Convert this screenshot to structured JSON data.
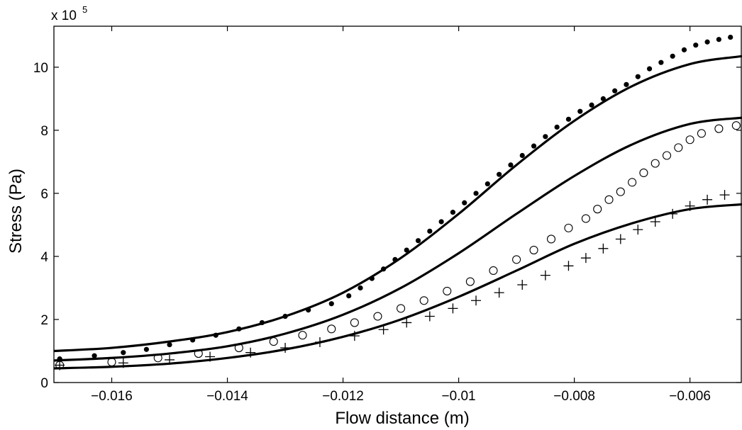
{
  "chart_data": {
    "type": "scatter",
    "title": "",
    "xlabel": "Flow distance (m)",
    "ylabel": "Stress (Pa)",
    "y_scale_label": {
      "base": "x 10",
      "exponent": "5"
    },
    "xlim": [
      -0.017,
      -0.0051
    ],
    "ylim": [
      0,
      11.3
    ],
    "y_multiplier": 100000,
    "grid": false,
    "legend": "none",
    "x_ticks": [
      {
        "value": -0.016,
        "label": "−0.016"
      },
      {
        "value": -0.014,
        "label": "−0.014"
      },
      {
        "value": -0.012,
        "label": "−0.012"
      },
      {
        "value": -0.01,
        "label": "−0.01"
      },
      {
        "value": -0.008,
        "label": "−0.008"
      },
      {
        "value": -0.006,
        "label": "−0.006"
      }
    ],
    "y_ticks": [
      {
        "value": 0,
        "label": "0"
      },
      {
        "value": 2,
        "label": "2"
      },
      {
        "value": 4,
        "label": "4"
      },
      {
        "value": 6,
        "label": "6"
      },
      {
        "value": 8,
        "label": "8"
      },
      {
        "value": 10,
        "label": "10"
      }
    ],
    "colors": {
      "line": "#000000",
      "marker": "#000000",
      "background": "#ffffff"
    },
    "series": [
      {
        "kind": "line",
        "x": [
          -0.017,
          -0.016,
          -0.015,
          -0.014,
          -0.013,
          -0.012,
          -0.011,
          -0.01,
          -0.009,
          -0.008,
          -0.007,
          -0.006,
          -0.0051
        ],
        "y": [
          1.0,
          1.1,
          1.3,
          1.6,
          2.1,
          2.85,
          3.95,
          5.35,
          6.9,
          8.3,
          9.4,
          10.1,
          10.35
        ]
      },
      {
        "kind": "line",
        "x": [
          -0.017,
          -0.016,
          -0.015,
          -0.014,
          -0.013,
          -0.012,
          -0.011,
          -0.01,
          -0.009,
          -0.008,
          -0.007,
          -0.006,
          -0.0051
        ],
        "y": [
          0.7,
          0.78,
          0.92,
          1.15,
          1.55,
          2.15,
          3.0,
          4.1,
          5.35,
          6.55,
          7.55,
          8.2,
          8.4
        ]
      },
      {
        "kind": "line",
        "x": [
          -0.017,
          -0.016,
          -0.015,
          -0.014,
          -0.013,
          -0.012,
          -0.011,
          -0.01,
          -0.009,
          -0.008,
          -0.007,
          -0.006,
          -0.0051
        ],
        "y": [
          0.45,
          0.5,
          0.6,
          0.78,
          1.05,
          1.45,
          2.0,
          2.72,
          3.55,
          4.4,
          5.05,
          5.5,
          5.65
        ]
      },
      {
        "kind": "markers",
        "marker": "filled-circle",
        "x": [
          -0.0169,
          -0.0163,
          -0.0158,
          -0.0154,
          -0.015,
          -0.0146,
          -0.0142,
          -0.0138,
          -0.0134,
          -0.013,
          -0.0126,
          -0.0122,
          -0.0119,
          -0.0117,
          -0.0115,
          -0.0113,
          -0.0111,
          -0.0109,
          -0.0107,
          -0.0105,
          -0.0103,
          -0.0101,
          -0.0099,
          -0.0097,
          -0.0095,
          -0.0093,
          -0.0091,
          -0.0089,
          -0.0087,
          -0.0085,
          -0.0083,
          -0.0081,
          -0.0079,
          -0.0077,
          -0.0075,
          -0.0073,
          -0.0071,
          -0.0069,
          -0.0067,
          -0.0065,
          -0.0063,
          -0.0061,
          -0.0059,
          -0.0057,
          -0.0055,
          -0.0053,
          -0.0051
        ],
        "y": [
          0.75,
          0.85,
          0.95,
          1.05,
          1.2,
          1.35,
          1.5,
          1.7,
          1.9,
          2.1,
          2.3,
          2.5,
          2.75,
          3.0,
          3.3,
          3.6,
          3.9,
          4.2,
          4.5,
          4.8,
          5.1,
          5.4,
          5.7,
          6.0,
          6.3,
          6.6,
          6.9,
          7.2,
          7.5,
          7.8,
          8.1,
          8.35,
          8.6,
          8.8,
          9.0,
          9.25,
          9.45,
          9.7,
          9.95,
          10.15,
          10.35,
          10.55,
          10.7,
          10.8,
          10.88,
          10.95,
          11.0
        ]
      },
      {
        "kind": "markers",
        "marker": "open-circle",
        "x": [
          -0.0169,
          -0.016,
          -0.0152,
          -0.0145,
          -0.0138,
          -0.0132,
          -0.0127,
          -0.0122,
          -0.0118,
          -0.0114,
          -0.011,
          -0.0106,
          -0.0102,
          -0.0098,
          -0.0094,
          -0.009,
          -0.0087,
          -0.0084,
          -0.0081,
          -0.0078,
          -0.0076,
          -0.0074,
          -0.0072,
          -0.007,
          -0.0068,
          -0.0066,
          -0.0064,
          -0.0062,
          -0.006,
          -0.0058,
          -0.0055,
          -0.0052
        ],
        "y": [
          0.55,
          0.65,
          0.78,
          0.92,
          1.1,
          1.3,
          1.5,
          1.7,
          1.9,
          2.1,
          2.35,
          2.6,
          2.9,
          3.2,
          3.55,
          3.9,
          4.2,
          4.55,
          4.9,
          5.2,
          5.5,
          5.8,
          6.05,
          6.35,
          6.65,
          6.95,
          7.2,
          7.45,
          7.7,
          7.9,
          8.05,
          8.15
        ]
      },
      {
        "kind": "markers",
        "marker": "plus",
        "x": [
          -0.0169,
          -0.0158,
          -0.015,
          -0.0143,
          -0.0136,
          -0.013,
          -0.0124,
          -0.0118,
          -0.0113,
          -0.0109,
          -0.0105,
          -0.0101,
          -0.0097,
          -0.0093,
          -0.0089,
          -0.0085,
          -0.0081,
          -0.0078,
          -0.0075,
          -0.0072,
          -0.0069,
          -0.0066,
          -0.0063,
          -0.006,
          -0.0057,
          -0.0054,
          -0.0051
        ],
        "y": [
          0.55,
          0.62,
          0.72,
          0.82,
          0.95,
          1.1,
          1.28,
          1.48,
          1.68,
          1.9,
          2.1,
          2.35,
          2.6,
          2.85,
          3.1,
          3.4,
          3.7,
          3.95,
          4.25,
          4.55,
          4.85,
          5.1,
          5.35,
          5.6,
          5.8,
          5.95,
          6.05
        ]
      }
    ]
  }
}
